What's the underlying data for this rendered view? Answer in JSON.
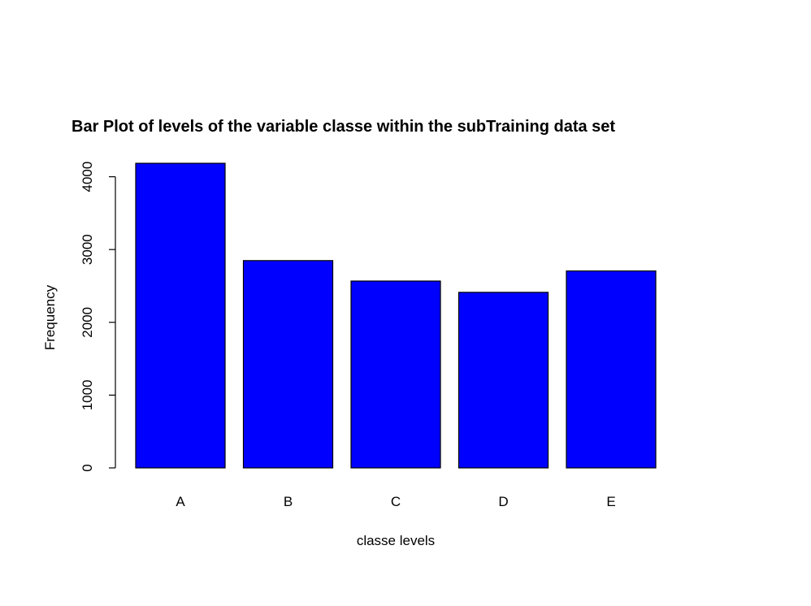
{
  "chart_data": {
    "type": "bar",
    "title": "Bar Plot of levels of the variable classe within the subTraining data set",
    "xlabel": "classe levels",
    "ylabel": "Frequency",
    "categories": [
      "A",
      "B",
      "C",
      "D",
      "E"
    ],
    "values": [
      4185,
      2848,
      2567,
      2412,
      2706
    ],
    "ylim": [
      0,
      4185
    ],
    "yticks": [
      0,
      1000,
      2000,
      3000,
      4000
    ],
    "bar_color": "#0000ff",
    "grid": false,
    "legend": "none"
  }
}
